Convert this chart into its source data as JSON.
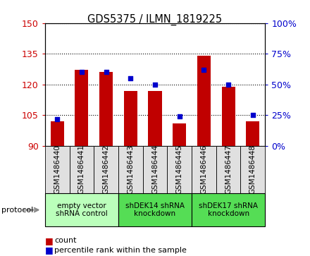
{
  "title": "GDS5375 / ILMN_1819225",
  "samples": [
    "GSM1486440",
    "GSM1486441",
    "GSM1486442",
    "GSM1486443",
    "GSM1486444",
    "GSM1486445",
    "GSM1486446",
    "GSM1486447",
    "GSM1486448"
  ],
  "counts": [
    102,
    127,
    126,
    117,
    117,
    101,
    134,
    119,
    102
  ],
  "percentiles": [
    22,
    60,
    60,
    55,
    50,
    24,
    62,
    50,
    25
  ],
  "ylim_left": [
    90,
    150
  ],
  "ylim_right": [
    0,
    100
  ],
  "yticks_left": [
    90,
    105,
    120,
    135,
    150
  ],
  "yticks_right": [
    0,
    25,
    50,
    75,
    100
  ],
  "bar_color": "#c00000",
  "dot_color": "#0000cc",
  "bar_bottom": 90,
  "groups": [
    {
      "label": "empty vector\nshRNA control",
      "start": 0,
      "end": 3,
      "color": "#bbffbb"
    },
    {
      "label": "shDEK14 shRNA\nknockdown",
      "start": 3,
      "end": 6,
      "color": "#55dd55"
    },
    {
      "label": "shDEK17 shRNA\nknockdown",
      "start": 6,
      "end": 9,
      "color": "#55dd55"
    }
  ],
  "protocol_label": "protocol",
  "legend_count_label": "count",
  "legend_pct_label": "percentile rank within the sample",
  "plot_bg": "#ffffff",
  "left_tick_color": "#cc0000",
  "right_tick_color": "#0000cc",
  "sample_box_color": "#e0e0e0",
  "tick_label_fontsize": 7.5,
  "bar_width": 0.55
}
